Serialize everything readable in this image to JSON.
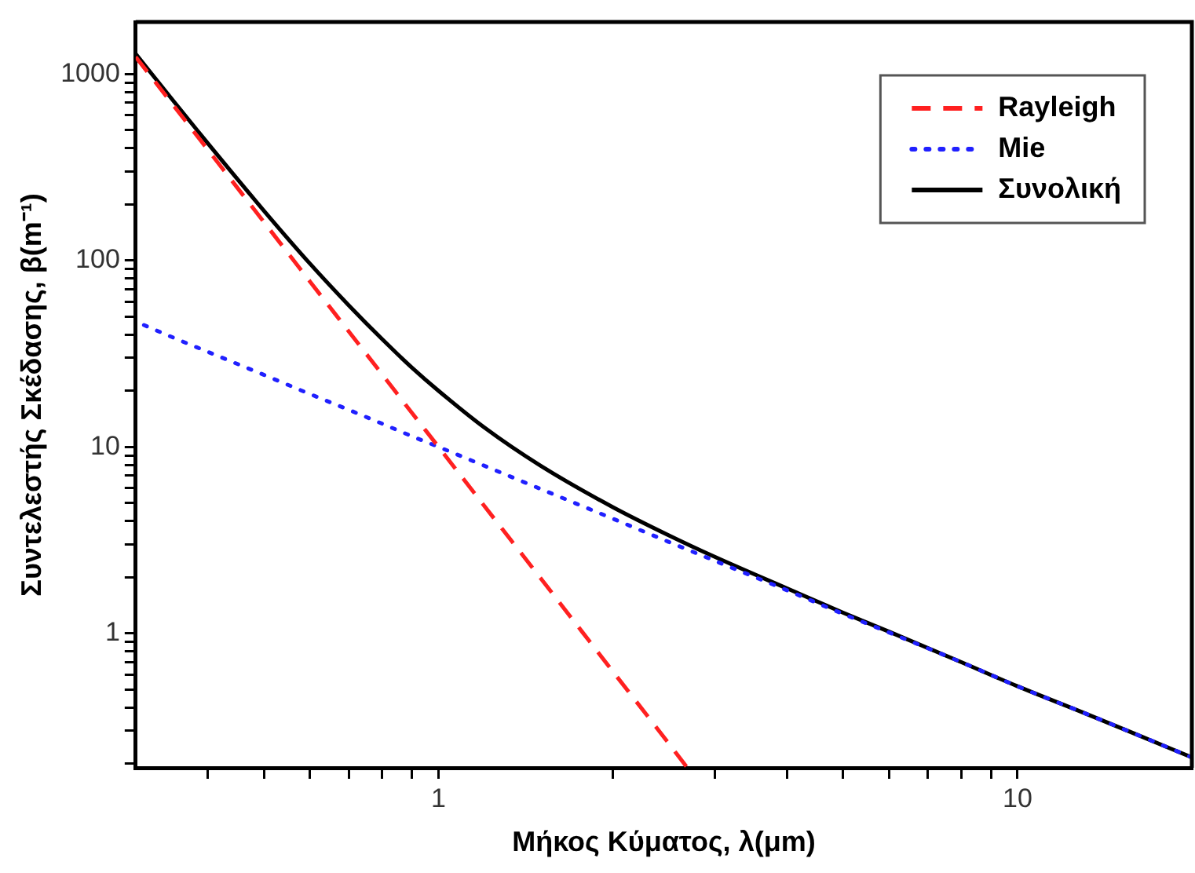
{
  "chart_data": {
    "type": "line",
    "xlabel": "Μήκος Κύματος, λ(μm)",
    "ylabel": "Συντελεστής Σκέδασης, β(m⁻¹)",
    "log": "xy",
    "xlim": [
      0.3,
      20
    ],
    "ylim": [
      0.19,
      1900
    ],
    "xticks": [
      {
        "value": 0.4,
        "label": null
      },
      {
        "value": 0.5,
        "label": null
      },
      {
        "value": 0.6,
        "label": null
      },
      {
        "value": 0.7,
        "label": null
      },
      {
        "value": 0.8,
        "label": null
      },
      {
        "value": 0.9,
        "label": null
      },
      1,
      {
        "value": 2,
        "label": null
      },
      {
        "value": 3,
        "label": null
      },
      {
        "value": 4,
        "label": null
      },
      {
        "value": 5,
        "label": null
      },
      {
        "value": 6,
        "label": null
      },
      {
        "value": 7,
        "label": null
      },
      {
        "value": 8,
        "label": null
      },
      {
        "value": 9,
        "label": null
      },
      10
    ],
    "yticks": [
      {
        "value": 0.2,
        "label": null
      },
      {
        "value": 0.3,
        "label": null
      },
      {
        "value": 0.4,
        "label": null
      },
      {
        "value": 0.5,
        "label": null
      },
      {
        "value": 0.6,
        "label": null
      },
      {
        "value": 0.7,
        "label": null
      },
      {
        "value": 0.8,
        "label": null
      },
      {
        "value": 0.9,
        "label": null
      },
      1,
      {
        "value": 2,
        "label": null
      },
      {
        "value": 3,
        "label": null
      },
      {
        "value": 4,
        "label": null
      },
      {
        "value": 5,
        "label": null
      },
      {
        "value": 6,
        "label": null
      },
      {
        "value": 7,
        "label": null
      },
      {
        "value": 8,
        "label": null
      },
      {
        "value": 9,
        "label": null
      },
      10,
      {
        "value": 20,
        "label": null
      },
      {
        "value": 30,
        "label": null
      },
      {
        "value": 40,
        "label": null
      },
      {
        "value": 50,
        "label": null
      },
      {
        "value": 60,
        "label": null
      },
      {
        "value": 70,
        "label": null
      },
      {
        "value": 80,
        "label": null
      },
      {
        "value": 90,
        "label": null
      },
      100,
      {
        "value": 200,
        "label": null
      },
      {
        "value": 300,
        "label": null
      },
      {
        "value": 400,
        "label": null
      },
      {
        "value": 500,
        "label": null
      },
      {
        "value": 600,
        "label": null
      },
      {
        "value": 700,
        "label": null
      },
      {
        "value": 800,
        "label": null
      },
      {
        "value": 900,
        "label": null
      },
      1000
    ],
    "grid": false,
    "legend": "top right",
    "marker": "none",
    "series": [
      {
        "name": "Rayleigh",
        "color": "#ff2020",
        "line_style": "dashed",
        "x": [
          0.3,
          0.35,
          0.4,
          0.5,
          0.6,
          0.7,
          0.8,
          0.9,
          1,
          1.2,
          1.5,
          2,
          2.5,
          2.69
        ],
        "values": [
          1235,
          667,
          391,
          160,
          77,
          41.6,
          24.4,
          15.2,
          10,
          4.82,
          1.98,
          0.625,
          0.256,
          0.19
        ]
      },
      {
        "name": "Mie",
        "color": "#2020ff",
        "line_style": "dotted",
        "x": [
          0.31,
          0.35,
          0.4,
          0.5,
          0.6,
          0.7,
          0.8,
          0.9,
          1,
          1.2,
          1.5,
          2,
          2.5,
          3,
          4,
          5,
          6,
          8,
          10,
          13,
          16,
          20
        ],
        "values": [
          45,
          38.3,
          32.3,
          24.3,
          19.2,
          15.8,
          13.3,
          11.4,
          10,
          7.92,
          5.95,
          4.12,
          3.09,
          2.45,
          1.7,
          1.27,
          1.01,
          0.7,
          0.52,
          0.375,
          0.288,
          0.216
        ]
      },
      {
        "name": "Συνολική",
        "color": "#000000",
        "line_style": "solid",
        "x": [
          0.3,
          0.35,
          0.4,
          0.5,
          0.6,
          0.7,
          0.8,
          0.9,
          1,
          1.2,
          1.5,
          2,
          2.5,
          3,
          4,
          5,
          6,
          8,
          10,
          13,
          16,
          20
        ],
        "values": [
          1282,
          705,
          423,
          184,
          96,
          57.4,
          37.7,
          26.6,
          20,
          12.7,
          7.93,
          4.75,
          3.35,
          2.57,
          1.74,
          1.29,
          1.02,
          0.7,
          0.52,
          0.375,
          0.288,
          0.216
        ]
      }
    ]
  }
}
